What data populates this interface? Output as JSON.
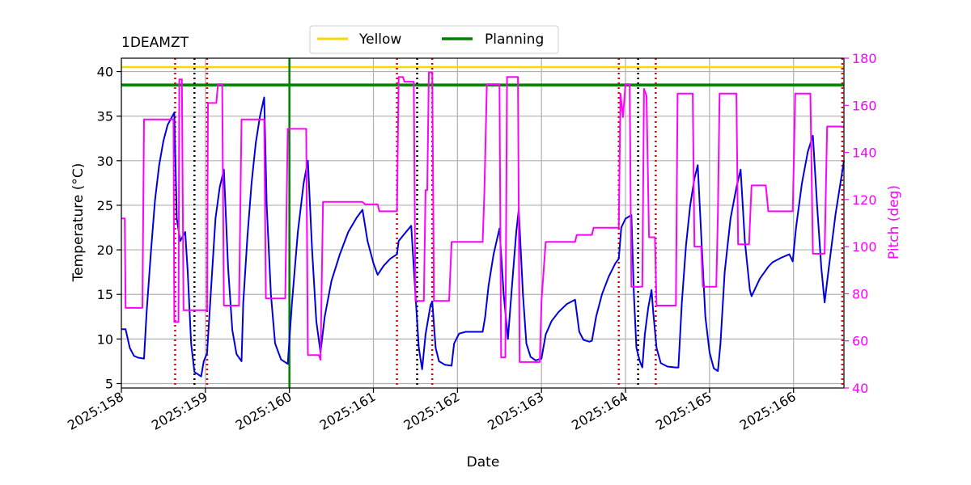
{
  "chart_data": {
    "type": "line",
    "title": "1DEAMZT",
    "xlabel": "Date",
    "ylabel": "Temperature ($^\\circ$C)",
    "ylabel_display": "Temperature (°C)",
    "y2label": "Pitch (deg)",
    "xlim": [
      158.0,
      166.6
    ],
    "ylim": [
      4.5,
      41.5
    ],
    "y2lim": [
      40,
      180
    ],
    "x_ticks": [
      158,
      159,
      160,
      161,
      162,
      163,
      164,
      165,
      166
    ],
    "x_tick_labels": [
      "2025:158",
      "2025:159",
      "2025:160",
      "2025:161",
      "2025:162",
      "2025:163",
      "2025:164",
      "2025:165",
      "2025:166"
    ],
    "y_ticks": [
      5,
      10,
      15,
      20,
      25,
      30,
      35,
      40
    ],
    "y2_ticks": [
      40,
      60,
      80,
      100,
      120,
      140,
      160,
      180
    ],
    "grid": true,
    "legend_position": "top-center",
    "colors": {
      "temperature": "#0000dd",
      "pitch": "#ff00ff",
      "yellow": "#ffd700",
      "planning": "#008000",
      "red_markers": "#dd0000",
      "black_markers": "#000000"
    },
    "legend": [
      {
        "label": "Yellow",
        "color": "#ffd700"
      },
      {
        "label": "Planning",
        "color": "#008000"
      }
    ],
    "hlines": [
      {
        "name": "Yellow",
        "y": 40.5,
        "color": "#ffd700"
      },
      {
        "name": "Planning",
        "y": 38.5,
        "color": "#008000"
      }
    ],
    "planning_vline_x": 160.0,
    "red_dotted_x": [
      158.64,
      159.02,
      161.28,
      161.7,
      163.92,
      164.36,
      166.58
    ],
    "black_dotted_x": [
      158.87,
      161.52,
      164.15
    ],
    "series": [
      {
        "name": "Temperature",
        "axis": "left",
        "color": "#0000dd",
        "points": [
          [
            158.0,
            11.1
          ],
          [
            158.05,
            11.1
          ],
          [
            158.1,
            9.0
          ],
          [
            158.15,
            8.1
          ],
          [
            158.2,
            7.9
          ],
          [
            158.27,
            7.8
          ],
          [
            158.3,
            13.0
          ],
          [
            158.35,
            19.5
          ],
          [
            158.4,
            25.5
          ],
          [
            158.45,
            29.5
          ],
          [
            158.5,
            32.2
          ],
          [
            158.55,
            34.0
          ],
          [
            158.63,
            35.4
          ],
          [
            158.66,
            23.5
          ],
          [
            158.7,
            21.0
          ],
          [
            158.76,
            22.0
          ],
          [
            158.79,
            17.5
          ],
          [
            158.83,
            9.5
          ],
          [
            158.87,
            6.3
          ],
          [
            158.95,
            5.8
          ],
          [
            158.98,
            7.5
          ],
          [
            159.02,
            8.4
          ],
          [
            159.07,
            16.0
          ],
          [
            159.12,
            23.5
          ],
          [
            159.17,
            27.0
          ],
          [
            159.22,
            29.0
          ],
          [
            159.27,
            18.0
          ],
          [
            159.32,
            11.0
          ],
          [
            159.37,
            8.3
          ],
          [
            159.43,
            7.5
          ],
          [
            159.45,
            14.0
          ],
          [
            159.5,
            21.5
          ],
          [
            159.55,
            27.5
          ],
          [
            159.6,
            32.0
          ],
          [
            159.65,
            35.0
          ],
          [
            159.7,
            37.1
          ],
          [
            159.73,
            25.0
          ],
          [
            159.78,
            15.0
          ],
          [
            159.83,
            9.5
          ],
          [
            159.9,
            7.7
          ],
          [
            159.98,
            7.2
          ],
          [
            160.03,
            14.0
          ],
          [
            160.1,
            22.0
          ],
          [
            160.17,
            27.5
          ],
          [
            160.22,
            30.0
          ],
          [
            160.27,
            20.0
          ],
          [
            160.32,
            12.0
          ],
          [
            160.37,
            8.5
          ],
          [
            160.42,
            12.5
          ],
          [
            160.5,
            16.5
          ],
          [
            160.6,
            19.5
          ],
          [
            160.7,
            22.0
          ],
          [
            160.8,
            23.6
          ],
          [
            160.87,
            24.5
          ],
          [
            160.93,
            21.0
          ],
          [
            161.0,
            18.5
          ],
          [
            161.05,
            17.2
          ],
          [
            161.12,
            18.2
          ],
          [
            161.2,
            19.0
          ],
          [
            161.28,
            19.5
          ],
          [
            161.3,
            21.0
          ],
          [
            161.37,
            21.8
          ],
          [
            161.45,
            22.7
          ],
          [
            161.5,
            15.0
          ],
          [
            161.54,
            9.0
          ],
          [
            161.58,
            6.6
          ],
          [
            161.62,
            10.5
          ],
          [
            161.68,
            13.8
          ],
          [
            161.7,
            14.2
          ],
          [
            161.74,
            9.0
          ],
          [
            161.78,
            7.5
          ],
          [
            161.85,
            7.1
          ],
          [
            161.93,
            7.0
          ],
          [
            161.96,
            9.5
          ],
          [
            162.02,
            10.6
          ],
          [
            162.1,
            10.8
          ],
          [
            162.2,
            10.8
          ],
          [
            162.3,
            10.8
          ],
          [
            162.33,
            12.5
          ],
          [
            162.37,
            16.0
          ],
          [
            162.43,
            19.5
          ],
          [
            162.5,
            22.4
          ],
          [
            162.55,
            15.0
          ],
          [
            162.6,
            10.0
          ],
          [
            162.65,
            16.0
          ],
          [
            162.7,
            22.0
          ],
          [
            162.73,
            24.5
          ],
          [
            162.78,
            15.0
          ],
          [
            162.82,
            9.5
          ],
          [
            162.87,
            8.0
          ],
          [
            162.93,
            7.6
          ],
          [
            163.0,
            7.8
          ],
          [
            163.05,
            10.5
          ],
          [
            163.12,
            12.0
          ],
          [
            163.2,
            13.0
          ],
          [
            163.3,
            13.9
          ],
          [
            163.4,
            14.4
          ],
          [
            163.45,
            10.8
          ],
          [
            163.5,
            9.9
          ],
          [
            163.57,
            9.7
          ],
          [
            163.6,
            9.8
          ],
          [
            163.65,
            12.5
          ],
          [
            163.72,
            15.0
          ],
          [
            163.8,
            17.0
          ],
          [
            163.88,
            18.5
          ],
          [
            163.92,
            19.0
          ],
          [
            163.95,
            22.5
          ],
          [
            164.0,
            23.5
          ],
          [
            164.07,
            23.9
          ],
          [
            164.1,
            15.0
          ],
          [
            164.13,
            9.0
          ],
          [
            164.17,
            7.5
          ],
          [
            164.2,
            6.8
          ],
          [
            164.23,
            10.5
          ],
          [
            164.27,
            13.5
          ],
          [
            164.31,
            15.5
          ],
          [
            164.33,
            13.0
          ],
          [
            164.37,
            9.0
          ],
          [
            164.42,
            7.3
          ],
          [
            164.5,
            6.9
          ],
          [
            164.6,
            6.8
          ],
          [
            164.63,
            6.8
          ],
          [
            164.67,
            14.0
          ],
          [
            164.72,
            20.5
          ],
          [
            164.77,
            25.0
          ],
          [
            164.82,
            28.0
          ],
          [
            164.86,
            29.5
          ],
          [
            164.91,
            20.0
          ],
          [
            164.95,
            12.5
          ],
          [
            165.0,
            8.5
          ],
          [
            165.05,
            6.7
          ],
          [
            165.1,
            6.4
          ],
          [
            165.13,
            9.5
          ],
          [
            165.18,
            17.5
          ],
          [
            165.25,
            23.5
          ],
          [
            165.32,
            27.0
          ],
          [
            165.37,
            29.0
          ],
          [
            165.42,
            21.0
          ],
          [
            165.48,
            15.5
          ],
          [
            165.5,
            14.8
          ],
          [
            165.55,
            15.8
          ],
          [
            165.6,
            16.8
          ],
          [
            165.67,
            17.7
          ],
          [
            165.7,
            18.1
          ],
          [
            165.75,
            18.6
          ],
          [
            165.85,
            19.1
          ],
          [
            165.95,
            19.5
          ],
          [
            165.99,
            18.7
          ],
          [
            166.03,
            22.5
          ],
          [
            166.1,
            27.5
          ],
          [
            166.17,
            31.0
          ],
          [
            166.23,
            32.8
          ],
          [
            166.28,
            25.0
          ],
          [
            166.33,
            18.0
          ],
          [
            166.37,
            14.1
          ],
          [
            166.42,
            18.0
          ],
          [
            166.5,
            24.0
          ],
          [
            166.6,
            30.0
          ]
        ]
      },
      {
        "name": "Pitch",
        "axis": "right",
        "color": "#ff00ff",
        "points": [
          [
            158.0,
            112
          ],
          [
            158.04,
            112
          ],
          [
            158.05,
            74
          ],
          [
            158.22,
            74
          ],
          [
            158.25,
            74
          ],
          [
            158.27,
            154
          ],
          [
            158.62,
            154
          ],
          [
            158.63,
            68
          ],
          [
            158.68,
            68
          ],
          [
            158.69,
            171
          ],
          [
            158.72,
            171
          ],
          [
            158.74,
            73
          ],
          [
            159.02,
            73
          ],
          [
            159.03,
            161
          ],
          [
            159.13,
            161
          ],
          [
            159.15,
            169
          ],
          [
            159.2,
            169
          ],
          [
            159.22,
            75
          ],
          [
            159.4,
            75
          ],
          [
            159.43,
            154
          ],
          [
            159.7,
            154
          ],
          [
            159.72,
            78
          ],
          [
            159.95,
            78
          ],
          [
            159.98,
            150
          ],
          [
            160.2,
            150
          ],
          [
            160.22,
            54
          ],
          [
            160.35,
            54
          ],
          [
            160.37,
            52
          ],
          [
            160.4,
            119
          ],
          [
            160.87,
            119
          ],
          [
            160.9,
            118
          ],
          [
            161.05,
            118
          ],
          [
            161.07,
            115
          ],
          [
            161.28,
            115
          ],
          [
            161.3,
            172
          ],
          [
            161.35,
            172
          ],
          [
            161.37,
            170
          ],
          [
            161.48,
            170
          ],
          [
            161.5,
            77
          ],
          [
            161.6,
            77
          ],
          [
            161.62,
            124
          ],
          [
            161.64,
            124
          ],
          [
            161.66,
            174
          ],
          [
            161.7,
            174
          ],
          [
            161.72,
            77
          ],
          [
            161.9,
            77
          ],
          [
            161.93,
            102
          ],
          [
            162.3,
            102
          ],
          [
            162.32,
            123
          ],
          [
            162.35,
            169
          ],
          [
            162.5,
            169
          ],
          [
            162.52,
            53
          ],
          [
            162.57,
            53
          ],
          [
            162.59,
            172
          ],
          [
            162.72,
            172
          ],
          [
            162.74,
            51
          ],
          [
            162.98,
            51
          ],
          [
            163.0,
            77
          ],
          [
            163.05,
            102
          ],
          [
            163.4,
            102
          ],
          [
            163.42,
            105
          ],
          [
            163.6,
            105
          ],
          [
            163.62,
            108
          ],
          [
            163.92,
            108
          ],
          [
            163.94,
            165
          ],
          [
            163.97,
            155
          ],
          [
            164.0,
            169
          ],
          [
            164.05,
            169
          ],
          [
            164.07,
            83
          ],
          [
            164.2,
            83
          ],
          [
            164.22,
            167
          ],
          [
            164.25,
            164
          ],
          [
            164.28,
            104
          ],
          [
            164.35,
            104
          ],
          [
            164.37,
            75
          ],
          [
            164.6,
            75
          ],
          [
            164.62,
            165
          ],
          [
            164.8,
            165
          ],
          [
            164.82,
            100
          ],
          [
            164.9,
            100
          ],
          [
            164.92,
            83
          ],
          [
            165.08,
            83
          ],
          [
            165.1,
            114
          ],
          [
            165.12,
            165
          ],
          [
            165.32,
            165
          ],
          [
            165.34,
            101
          ],
          [
            165.47,
            101
          ],
          [
            165.5,
            126
          ],
          [
            165.67,
            126
          ],
          [
            165.7,
            115
          ],
          [
            165.99,
            115
          ],
          [
            166.02,
            165
          ],
          [
            166.2,
            165
          ],
          [
            166.23,
            97
          ],
          [
            166.37,
            97
          ],
          [
            166.4,
            151
          ],
          [
            166.6,
            151
          ]
        ]
      }
    ]
  }
}
